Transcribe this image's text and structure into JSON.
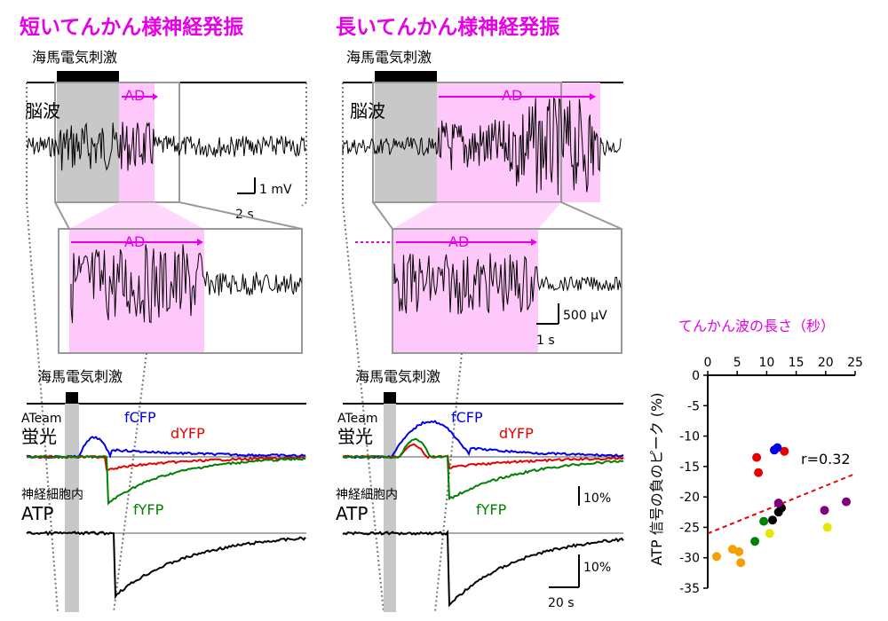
{
  "left": {
    "title": "短いてんかん様神経発振",
    "stim_label": "海馬電気刺激",
    "eeg_label": "脳波",
    "ad_label": "AD",
    "ad_zoom_label": "AD",
    "scale_v": "1 mV",
    "scale_t": "2 s",
    "stim_label2": "海馬電気刺激",
    "ateam_small": "ATeam",
    "ateam_big": "蛍光",
    "fcfp": "fCFP",
    "dyfp": "dYFP",
    "fyfp": "fYFP",
    "atp_small": "神経細胞内",
    "atp_big": "ATP"
  },
  "right": {
    "title": "長いてんかん様神経発振",
    "stim_label": "海馬電気刺激",
    "eeg_label": "脳波",
    "ad_label": "AD",
    "ad_zoom_label": "AD",
    "scale_v": "500 μV",
    "scale_t": "1 s",
    "stim_label2": "海馬電気刺激",
    "ateam_small": "ATeam",
    "ateam_big": "蛍光",
    "fcfp": "fCFP",
    "dyfp": "dYFP",
    "fyfp": "fYFP",
    "atp_small": "神経細胞内",
    "atp_big": "ATP",
    "scale_pct1": "10%",
    "scale_pct2": "10%",
    "scale_time": "20 s"
  },
  "colors": {
    "magenta": "#e600e6",
    "pink_fill": "#ffc8fa",
    "gray_fill": "#c8c8c8",
    "fcfp": "#0000e6",
    "dyfp": "#e60000",
    "fyfp": "#008000",
    "trend": "#e60000"
  },
  "chart_data": {
    "type": "scatter",
    "title": "",
    "xlabel": "てんかん波の長さ（秒）",
    "ylabel": "ATP 信号の負のピーク (%)",
    "xlim": [
      0,
      25
    ],
    "ylim": [
      -35,
      0
    ],
    "x_ticks": [
      "0",
      "5",
      "10",
      "15",
      "20",
      "25"
    ],
    "y_ticks": [
      "0",
      "-5",
      "-10",
      "-15",
      "-20",
      "-25",
      "-30",
      "-35"
    ],
    "annotation": "r=0.32",
    "trend_line": {
      "x": [
        0,
        25
      ],
      "y": [
        -26,
        -16.2
      ]
    },
    "points": [
      {
        "x": 1.5,
        "y": -29.8,
        "color": "#f5a000"
      },
      {
        "x": 4.2,
        "y": -28.6,
        "color": "#f5a000"
      },
      {
        "x": 5.3,
        "y": -29.0,
        "color": "#f5a000"
      },
      {
        "x": 5.6,
        "y": -30.8,
        "color": "#f5a000"
      },
      {
        "x": 8.0,
        "y": -27.3,
        "color": "#008000"
      },
      {
        "x": 9.5,
        "y": -24.0,
        "color": "#008000"
      },
      {
        "x": 10.5,
        "y": -26.0,
        "color": "#e6e600"
      },
      {
        "x": 11.0,
        "y": -23.8,
        "color": "#000000"
      },
      {
        "x": 12.0,
        "y": -22.5,
        "color": "#000000"
      },
      {
        "x": 12.5,
        "y": -21.8,
        "color": "#000000"
      },
      {
        "x": 12.0,
        "y": -21.0,
        "color": "#800080"
      },
      {
        "x": 8.3,
        "y": -13.5,
        "color": "#e60000"
      },
      {
        "x": 8.6,
        "y": -16.0,
        "color": "#e60000"
      },
      {
        "x": 13.0,
        "y": -12.5,
        "color": "#e60000"
      },
      {
        "x": 11.3,
        "y": -12.3,
        "color": "#0000e6"
      },
      {
        "x": 11.8,
        "y": -11.9,
        "color": "#0000e6"
      },
      {
        "x": 19.8,
        "y": -22.2,
        "color": "#800080"
      },
      {
        "x": 23.5,
        "y": -20.8,
        "color": "#800080"
      },
      {
        "x": 20.3,
        "y": -25.0,
        "color": "#e6e600"
      }
    ]
  }
}
